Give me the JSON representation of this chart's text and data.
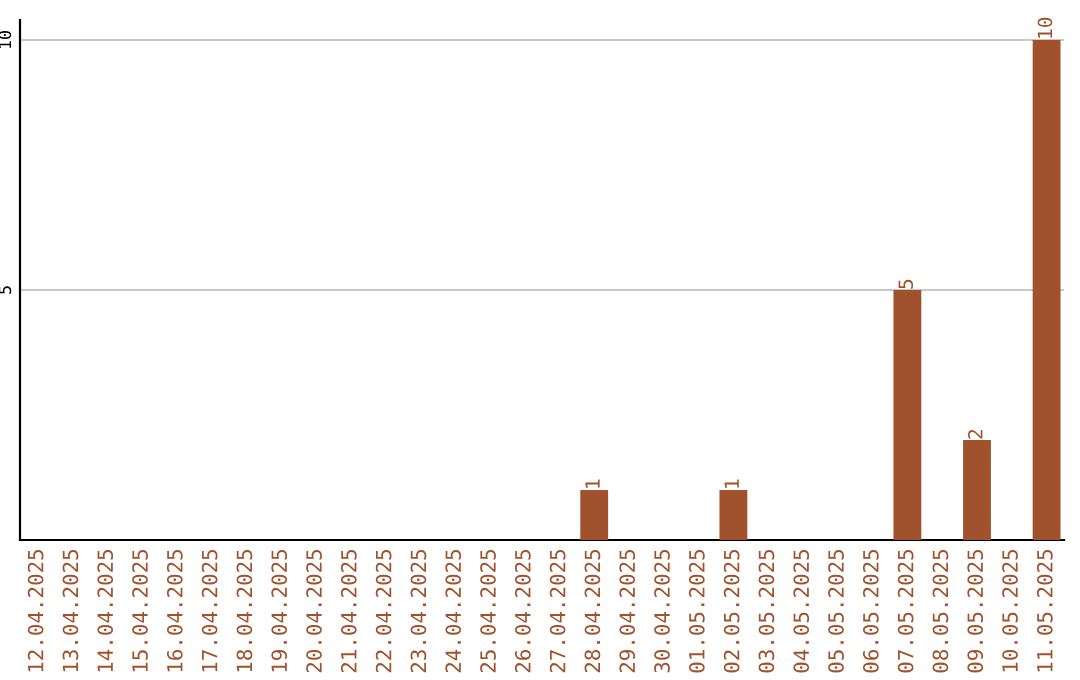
{
  "chart_data": {
    "type": "bar",
    "categories": [
      "12.04.2025",
      "13.04.2025",
      "14.04.2025",
      "15.04.2025",
      "16.04.2025",
      "17.04.2025",
      "18.04.2025",
      "19.04.2025",
      "20.04.2025",
      "21.04.2025",
      "22.04.2025",
      "23.04.2025",
      "24.04.2025",
      "25.04.2025",
      "26.04.2025",
      "27.04.2025",
      "28.04.2025",
      "29.04.2025",
      "30.04.2025",
      "01.05.2025",
      "02.05.2025",
      "03.05.2025",
      "04.05.2025",
      "05.05.2025",
      "06.05.2025",
      "07.05.2025",
      "08.05.2025",
      "09.05.2025",
      "10.05.2025",
      "11.05.2025"
    ],
    "values": [
      0,
      0,
      0,
      0,
      0,
      0,
      0,
      0,
      0,
      0,
      0,
      0,
      0,
      0,
      0,
      0,
      1,
      0,
      0,
      0,
      1,
      0,
      0,
      0,
      0,
      5,
      0,
      2,
      0,
      10
    ],
    "value_labels": [
      null,
      null,
      null,
      null,
      null,
      null,
      null,
      null,
      null,
      null,
      null,
      null,
      null,
      null,
      null,
      null,
      "1",
      null,
      null,
      null,
      "1",
      null,
      null,
      null,
      null,
      "5",
      null,
      "2",
      null,
      "10"
    ],
    "color": "#a0522d",
    "ylim": [
      0,
      10.4
    ],
    "yticks": [
      5,
      10
    ],
    "grid": "y",
    "legend": false
  }
}
